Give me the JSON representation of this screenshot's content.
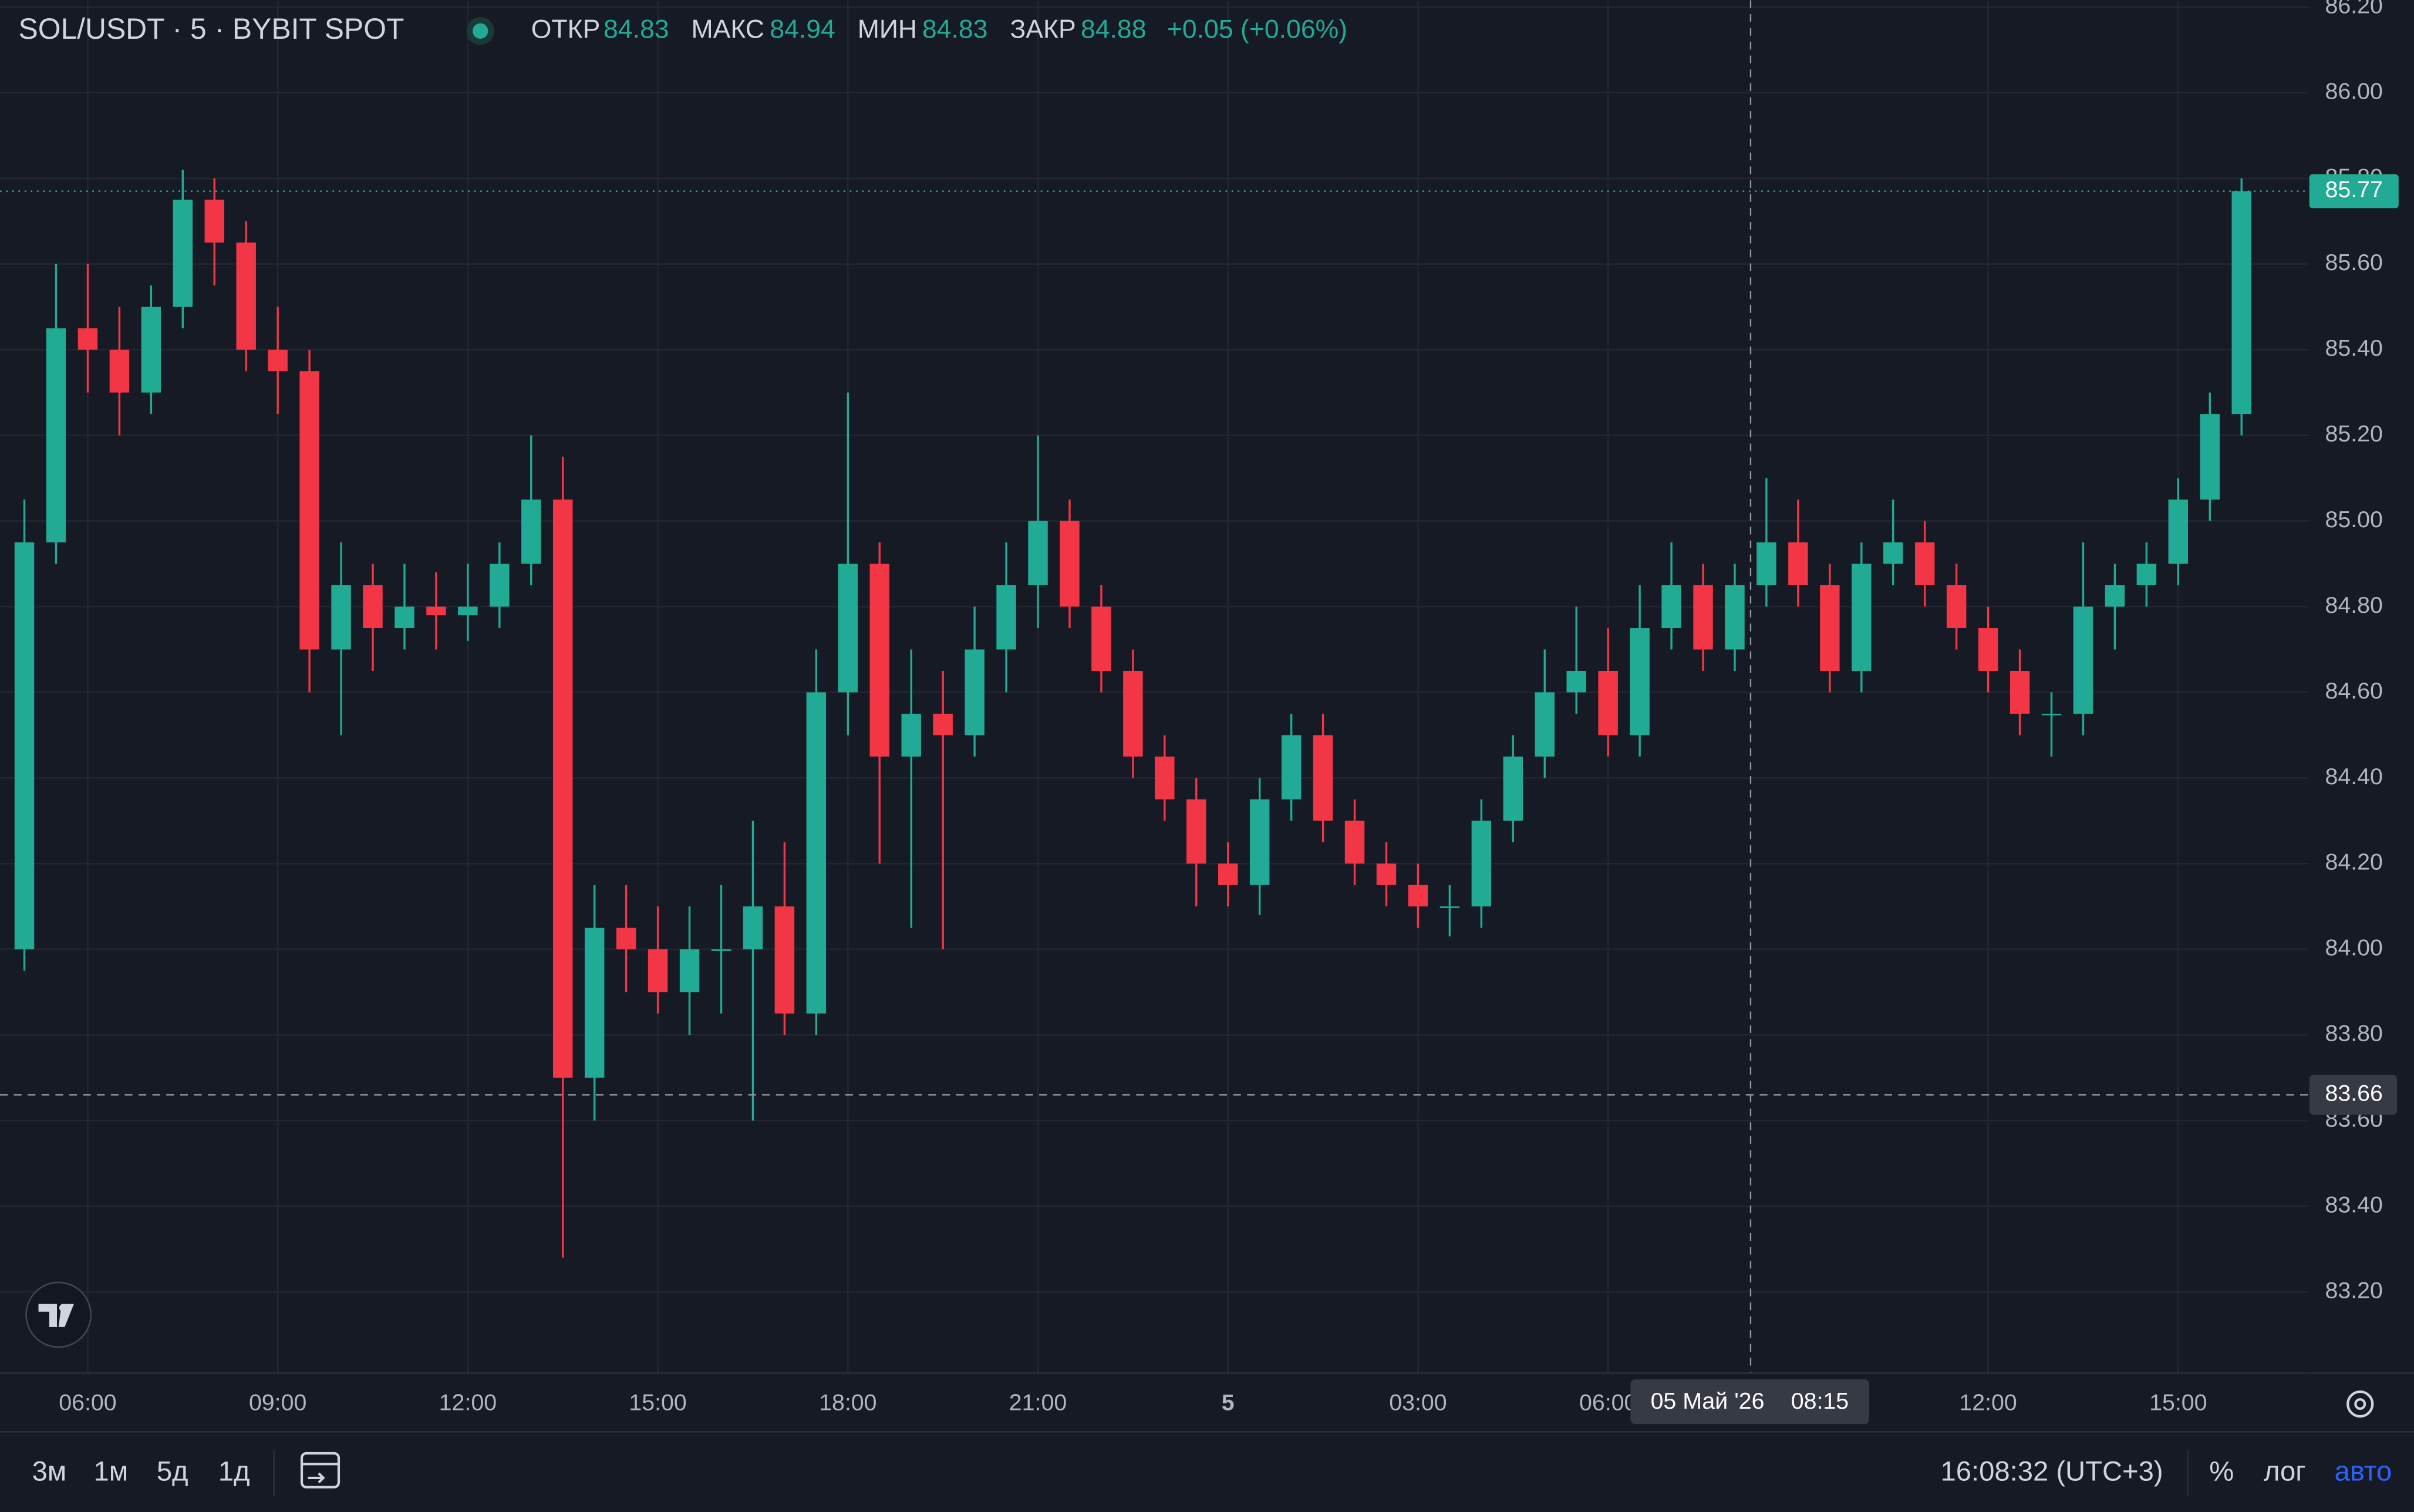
{
  "chart_data": {
    "type": "candlestick",
    "title": "SOL/USDT · 5 · BYBIT SPOT",
    "legend": {
      "open_label": "ОТКР",
      "open": 84.83,
      "high_label": "МАКС",
      "high": 84.94,
      "low_label": "МИН",
      "low": 84.83,
      "close_label": "ЗАКР",
      "close": 84.88,
      "change": "+0.05 (+0.06%)"
    },
    "up_color": "#22ab94",
    "down_color": "#f23645",
    "x": [
      5,
      5.5,
      6,
      6.5,
      7,
      7.5,
      8,
      8.5,
      9,
      9.5,
      10,
      10.5,
      11,
      11.5,
      12,
      12.5,
      13,
      13.5,
      14,
      14.5,
      15,
      15.5,
      16,
      16.5,
      17,
      17.5,
      18,
      18.5,
      19,
      19.5,
      20,
      20.5,
      21,
      21.5,
      22,
      22.5,
      23,
      23.5,
      24,
      24.5,
      25,
      25.5,
      26,
      26.5,
      27,
      27.5,
      28,
      28.5,
      29,
      29.5,
      30,
      30.5,
      31,
      31.5,
      32,
      32.5,
      33,
      33.5,
      34,
      34.5,
      35,
      35.5,
      36,
      36.5,
      37,
      37.5,
      38,
      38.5,
      39,
      39.5,
      40
    ],
    "open": [
      84.0,
      84.95,
      85.45,
      85.4,
      85.3,
      85.5,
      85.75,
      85.65,
      85.4,
      85.35,
      84.7,
      84.85,
      84.75,
      84.8,
      84.78,
      84.8,
      84.9,
      85.05,
      83.7,
      84.05,
      84.0,
      83.9,
      84.0,
      84.0,
      84.1,
      83.85,
      84.6,
      84.9,
      84.45,
      84.55,
      84.5,
      84.7,
      84.85,
      85.0,
      84.8,
      84.65,
      84.45,
      84.35,
      84.2,
      84.15,
      84.35,
      84.5,
      84.3,
      84.2,
      84.15,
      84.1,
      84.1,
      84.3,
      84.45,
      84.6,
      84.65,
      84.5,
      84.75,
      84.85,
      84.7,
      84.85,
      84.95,
      84.85,
      84.65,
      84.9,
      84.95,
      84.85,
      84.75,
      84.65,
      84.55,
      84.55,
      84.8,
      84.85,
      84.9,
      85.05,
      85.25
    ],
    "high": [
      85.05,
      85.6,
      85.6,
      85.5,
      85.55,
      85.82,
      85.8,
      85.7,
      85.5,
      85.4,
      84.95,
      84.9,
      84.9,
      84.88,
      84.9,
      84.95,
      85.2,
      85.15,
      84.15,
      84.15,
      84.1,
      84.1,
      84.15,
      84.3,
      84.25,
      84.7,
      85.3,
      84.95,
      84.7,
      84.65,
      84.8,
      84.95,
      85.2,
      85.05,
      84.85,
      84.7,
      84.5,
      84.4,
      84.25,
      84.4,
      84.55,
      84.55,
      84.35,
      84.25,
      84.2,
      84.15,
      84.35,
      84.5,
      84.7,
      84.8,
      84.75,
      84.85,
      84.95,
      84.9,
      84.9,
      85.1,
      85.05,
      84.9,
      84.95,
      85.05,
      85.0,
      84.9,
      84.8,
      84.7,
      84.6,
      84.95,
      84.9,
      84.95,
      85.1,
      85.3,
      85.8
    ],
    "low": [
      83.95,
      84.9,
      85.3,
      85.2,
      85.25,
      85.45,
      85.55,
      85.35,
      85.25,
      84.6,
      84.5,
      84.65,
      84.7,
      84.7,
      84.72,
      84.75,
      84.85,
      83.28,
      83.6,
      83.9,
      83.85,
      83.8,
      83.85,
      83.6,
      83.8,
      83.8,
      84.5,
      84.2,
      84.05,
      84.0,
      84.45,
      84.6,
      84.75,
      84.75,
      84.6,
      84.4,
      84.3,
      84.1,
      84.1,
      84.08,
      84.3,
      84.25,
      84.15,
      84.1,
      84.05,
      84.03,
      84.05,
      84.25,
      84.4,
      84.55,
      84.45,
      84.45,
      84.7,
      84.65,
      84.65,
      84.8,
      84.8,
      84.6,
      84.6,
      84.85,
      84.8,
      84.7,
      84.6,
      84.5,
      84.45,
      84.5,
      84.7,
      84.8,
      84.85,
      85.0,
      85.2
    ],
    "close": [
      84.95,
      85.45,
      85.4,
      85.3,
      85.5,
      85.75,
      85.65,
      85.4,
      85.35,
      84.7,
      84.85,
      84.75,
      84.8,
      84.78,
      84.8,
      84.9,
      85.05,
      83.7,
      84.05,
      84.0,
      83.9,
      84.0,
      84.0,
      84.1,
      83.85,
      84.6,
      84.9,
      84.45,
      84.55,
      84.5,
      84.7,
      84.85,
      85.0,
      84.8,
      84.65,
      84.45,
      84.35,
      84.2,
      84.15,
      84.35,
      84.5,
      84.3,
      84.2,
      84.15,
      84.1,
      84.1,
      84.3,
      84.45,
      84.6,
      84.65,
      84.5,
      84.75,
      84.85,
      84.7,
      84.85,
      84.95,
      84.85,
      84.65,
      84.9,
      84.95,
      84.85,
      84.75,
      84.65,
      84.55,
      84.55,
      84.8,
      84.85,
      84.9,
      85.05,
      85.25,
      85.77
    ],
    "last_price": 85.77,
    "xlim": [
      4.615,
      41.07
    ],
    "xticks": [
      {
        "value": 6,
        "label": "06:00"
      },
      {
        "value": 9,
        "label": "09:00"
      },
      {
        "value": 12,
        "label": "12:00"
      },
      {
        "value": 15,
        "label": "15:00"
      },
      {
        "value": 18,
        "label": "18:00"
      },
      {
        "value": 21,
        "label": "21:00"
      },
      {
        "value": 24,
        "label": "5"
      },
      {
        "value": 27,
        "label": "03:00"
      },
      {
        "value": 30,
        "label": "06:00"
      },
      {
        "value": 36,
        "label": "12:00"
      },
      {
        "value": 39,
        "label": "15:00"
      }
    ],
    "ylim": [
      83.01,
      86.216
    ],
    "yticks": [
      {
        "value": 83.2,
        "label": "83.20"
      },
      {
        "value": 83.4,
        "label": "83.40"
      },
      {
        "value": 83.6,
        "label": "83.60"
      },
      {
        "value": 83.8,
        "label": "83.80"
      },
      {
        "value": 84,
        "label": "84.00"
      },
      {
        "value": 84.2,
        "label": "84.20"
      },
      {
        "value": 84.4,
        "label": "84.40"
      },
      {
        "value": 84.6,
        "label": "84.60"
      },
      {
        "value": 84.8,
        "label": "84.80"
      },
      {
        "value": 85,
        "label": "85.00"
      },
      {
        "value": 85.2,
        "label": "85.20"
      },
      {
        "value": 85.4,
        "label": "85.40"
      },
      {
        "value": 85.6,
        "label": "85.60"
      },
      {
        "value": 85.8,
        "label": "85.80"
      },
      {
        "value": 86,
        "label": "86.00"
      },
      {
        "value": 86.2,
        "label": "86.20"
      }
    ],
    "grid": true,
    "crosshair": {
      "x": 32.25,
      "date_label": "05 Май '26",
      "time_label": "08:15",
      "y": 83.66
    }
  },
  "toolbar": {
    "ranges": [
      "3м",
      "1м",
      "5д",
      "1д"
    ],
    "clock": "16:08:32 (UTC+3)",
    "percent": "%",
    "log": "лог",
    "auto": "авто"
  }
}
